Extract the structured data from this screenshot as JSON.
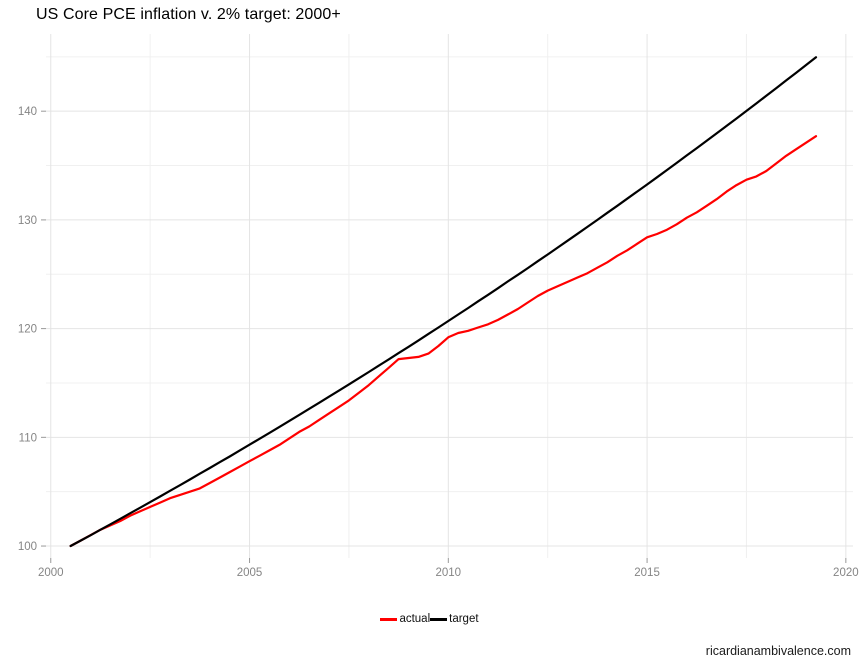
{
  "page": {
    "watermark": "ricardianambivalence.com"
  },
  "chart_data": {
    "type": "line",
    "title": "US Core PCE inflation v. 2% target: 2000+",
    "xlabel": "",
    "ylabel": "",
    "xlim": [
      1999.88,
      2020.18
    ],
    "ylim": [
      98.9,
      147.1
    ],
    "x_major_ticks": [
      2000,
      2005,
      2010,
      2015,
      2020
    ],
    "x_minor_ticks": [
      2002.5,
      2007.5,
      2012.5,
      2017.5
    ],
    "y_major_ticks": [
      100,
      110,
      120,
      130,
      140
    ],
    "y_minor_ticks": [
      105,
      115,
      125,
      135,
      145
    ],
    "grid": "major+minor",
    "legend_position": "bottom-center",
    "colors": {
      "actual": "#ff0000",
      "target": "#000000",
      "grid_major": "#e4e4e4",
      "grid_minor": "#f0f0f0",
      "tick_label": "#858585",
      "tick_mark": "#999999"
    },
    "x": [
      2000.5,
      2000.75,
      2001.0,
      2001.25,
      2001.5,
      2001.75,
      2002.0,
      2002.25,
      2002.5,
      2002.75,
      2003.0,
      2003.25,
      2003.5,
      2003.75,
      2004.0,
      2004.25,
      2004.5,
      2004.75,
      2005.0,
      2005.25,
      2005.5,
      2005.75,
      2006.0,
      2006.25,
      2006.5,
      2006.75,
      2007.0,
      2007.25,
      2007.5,
      2007.75,
      2008.0,
      2008.25,
      2008.5,
      2008.75,
      2009.0,
      2009.25,
      2009.5,
      2009.75,
      2010.0,
      2010.25,
      2010.5,
      2010.75,
      2011.0,
      2011.25,
      2011.5,
      2011.75,
      2012.0,
      2012.25,
      2012.5,
      2012.75,
      2013.0,
      2013.25,
      2013.5,
      2013.75,
      2014.0,
      2014.25,
      2014.5,
      2014.75,
      2015.0,
      2015.25,
      2015.5,
      2015.75,
      2016.0,
      2016.25,
      2016.5,
      2016.75,
      2017.0,
      2017.25,
      2017.5,
      2017.75,
      2018.0,
      2018.25,
      2018.5,
      2018.75,
      2019.0,
      2019.25
    ],
    "series": [
      {
        "name": "actual",
        "color": "#ff0000",
        "values": [
          100.0,
          100.5,
          101.0,
          101.5,
          101.9,
          102.3,
          102.8,
          103.2,
          103.6,
          104.0,
          104.4,
          104.7,
          105.0,
          105.3,
          105.8,
          106.3,
          106.8,
          107.3,
          107.8,
          108.3,
          108.8,
          109.3,
          109.9,
          110.5,
          111.0,
          111.6,
          112.2,
          112.8,
          113.4,
          114.1,
          114.8,
          115.6,
          116.4,
          117.2,
          117.3,
          117.4,
          117.7,
          118.4,
          119.2,
          119.6,
          119.8,
          120.1,
          120.4,
          120.8,
          121.3,
          121.8,
          122.4,
          123.0,
          123.5,
          123.9,
          124.3,
          124.7,
          125.1,
          125.6,
          126.1,
          126.7,
          127.2,
          127.8,
          128.4,
          128.7,
          129.1,
          129.6,
          130.2,
          130.7,
          131.3,
          131.9,
          132.6,
          133.2,
          133.7,
          134.0,
          134.5,
          135.2,
          135.9,
          136.5,
          137.1,
          137.7
        ]
      },
      {
        "name": "target",
        "color": "#000000",
        "values": [
          100.0,
          100.5,
          100.99,
          101.5,
          102.0,
          102.51,
          103.02,
          103.53,
          104.04,
          104.56,
          105.08,
          105.6,
          106.12,
          106.65,
          107.18,
          107.71,
          108.24,
          108.78,
          109.32,
          109.86,
          110.41,
          110.96,
          111.51,
          112.06,
          112.62,
          113.18,
          113.74,
          114.3,
          114.87,
          115.44,
          116.01,
          116.59,
          117.17,
          117.75,
          118.33,
          118.92,
          119.51,
          120.1,
          120.7,
          121.3,
          121.9,
          122.51,
          123.11,
          123.72,
          124.34,
          124.95,
          125.57,
          126.2,
          126.82,
          127.45,
          128.09,
          128.72,
          129.36,
          130.0,
          130.65,
          131.3,
          131.95,
          132.6,
          133.26,
          133.92,
          134.59,
          135.26,
          135.93,
          136.6,
          137.28,
          137.96,
          138.65,
          139.33,
          140.03,
          140.72,
          141.42,
          142.12,
          142.83,
          143.54,
          144.25,
          144.96
        ]
      }
    ]
  },
  "legend": {
    "items": [
      {
        "label": "actual",
        "color": "#ff0000"
      },
      {
        "label": "target",
        "color": "#000000"
      }
    ]
  }
}
